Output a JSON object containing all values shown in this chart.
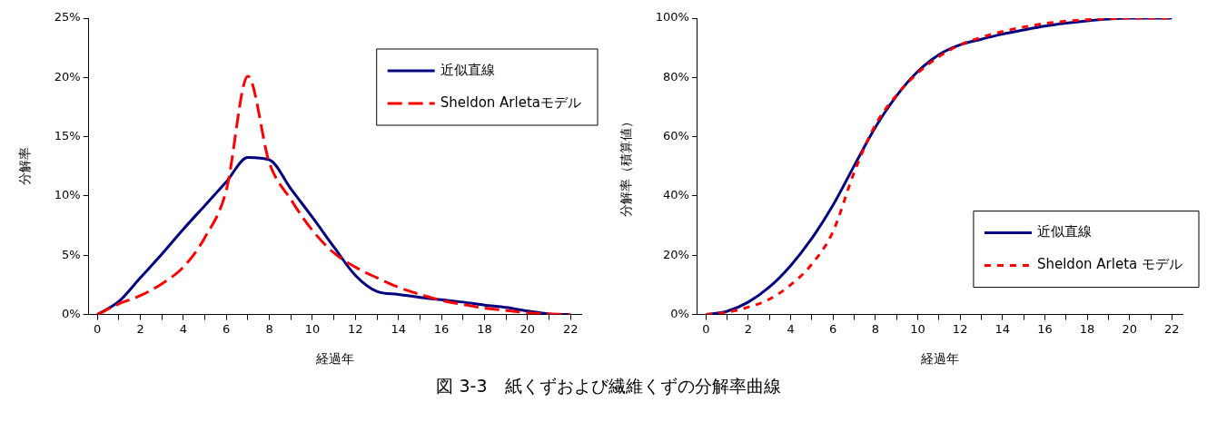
{
  "chart_data": [
    {
      "type": "line",
      "xlabel": "経過年",
      "ylabel": "分解率",
      "x": [
        0,
        1,
        2,
        3,
        4,
        5,
        6,
        7,
        8,
        9,
        10,
        11,
        12,
        13,
        14,
        15,
        16,
        17,
        18,
        19,
        20,
        21,
        22
      ],
      "series": [
        {
          "name": "近似直線",
          "color": "#000080",
          "line_style": "solid",
          "values": [
            0,
            1.1,
            3.1,
            5.1,
            7.2,
            9.2,
            11.2,
            13.25,
            13.05,
            10.6,
            8.2,
            5.7,
            3.3,
            1.95,
            1.7,
            1.45,
            1.25,
            1.05,
            0.8,
            0.6,
            0.3,
            0.05,
            0
          ]
        },
        {
          "name": "Sheldon Arletaモデル",
          "color": "#ff0000",
          "line_style": "dashed",
          "values": [
            0,
            0.9,
            1.6,
            2.6,
            4.0,
            6.5,
            10.5,
            20.1,
            12.8,
            9.7,
            7.1,
            5.2,
            4.0,
            3.1,
            2.3,
            1.7,
            1.2,
            0.85,
            0.55,
            0.35,
            0.15,
            0.05,
            0
          ]
        }
      ],
      "xlim": [
        -0.4,
        22.5
      ],
      "xticks": [
        0,
        {
          "value": 1,
          "label": null
        },
        2,
        {
          "value": 3,
          "label": null
        },
        4,
        {
          "value": 5,
          "label": null
        },
        6,
        {
          "value": 7,
          "label": null
        },
        8,
        {
          "value": 9,
          "label": null
        },
        10,
        {
          "value": 11,
          "label": null
        },
        12,
        {
          "value": 13,
          "label": null
        },
        14,
        {
          "value": 15,
          "label": null
        },
        16,
        {
          "value": 17,
          "label": null
        },
        18,
        {
          "value": 19,
          "label": null
        },
        20,
        {
          "value": 21,
          "label": null
        },
        22
      ],
      "ylim": [
        0,
        25
      ],
      "yticks": [
        {
          "value": 0,
          "label": "0%"
        },
        {
          "value": 5,
          "label": "5%"
        },
        {
          "value": 10,
          "label": "10%"
        },
        {
          "value": 15,
          "label": "15%"
        },
        {
          "value": 20,
          "label": "20%"
        },
        {
          "value": 25,
          "label": "25%"
        }
      ],
      "grid": false,
      "legend": "top right",
      "marker": "none",
      "annotations": [
        "図 3-3　紙くずおよび繊維くずの分解率曲線"
      ]
    },
    {
      "type": "line",
      "xlabel": "経過年",
      "ylabel": "分解率（積算値）",
      "x": [
        0,
        1,
        2,
        3,
        4,
        5,
        6,
        7,
        8,
        9,
        10,
        11,
        12,
        13,
        14,
        15,
        16,
        17,
        18,
        19,
        20,
        21,
        22
      ],
      "series": [
        {
          "name": "近似直線",
          "color": "#000080",
          "line_style": "solid",
          "values": [
            0,
            1.1,
            4.2,
            9.3,
            16.5,
            25.7,
            36.9,
            50.2,
            63.2,
            73.8,
            82,
            87.7,
            91,
            92.9,
            94.6,
            96,
            97.3,
            98.3,
            99.1,
            99.7,
            100,
            100,
            100
          ]
        },
        {
          "name": "Sheldon Arleta モデル",
          "color": "#ff0000",
          "line_style": "dotted",
          "values": [
            0,
            0.8,
            2.5,
            5.2,
            10,
            17,
            28,
            48,
            64,
            74,
            81.5,
            87,
            91,
            93.5,
            95.5,
            97,
            98.2,
            99,
            99.5,
            99.8,
            100,
            100,
            100
          ]
        }
      ],
      "xlim": [
        -0.4,
        22.5
      ],
      "xticks": [
        0,
        {
          "value": 1,
          "label": null
        },
        2,
        {
          "value": 3,
          "label": null
        },
        4,
        {
          "value": 5,
          "label": null
        },
        6,
        {
          "value": 7,
          "label": null
        },
        8,
        {
          "value": 9,
          "label": null
        },
        10,
        {
          "value": 11,
          "label": null
        },
        12,
        {
          "value": 13,
          "label": null
        },
        14,
        {
          "value": 15,
          "label": null
        },
        16,
        {
          "value": 17,
          "label": null
        },
        18,
        {
          "value": 19,
          "label": null
        },
        20,
        {
          "value": 21,
          "label": null
        },
        22
      ],
      "ylim": [
        0,
        100
      ],
      "yticks": [
        {
          "value": 0,
          "label": "0%"
        },
        {
          "value": 20,
          "label": "20%"
        },
        {
          "value": 40,
          "label": "40%"
        },
        {
          "value": 60,
          "label": "60%"
        },
        {
          "value": 80,
          "label": "80%"
        },
        {
          "value": 100,
          "label": "100%"
        }
      ],
      "grid": false,
      "legend": "bottom right",
      "marker": "none"
    }
  ]
}
